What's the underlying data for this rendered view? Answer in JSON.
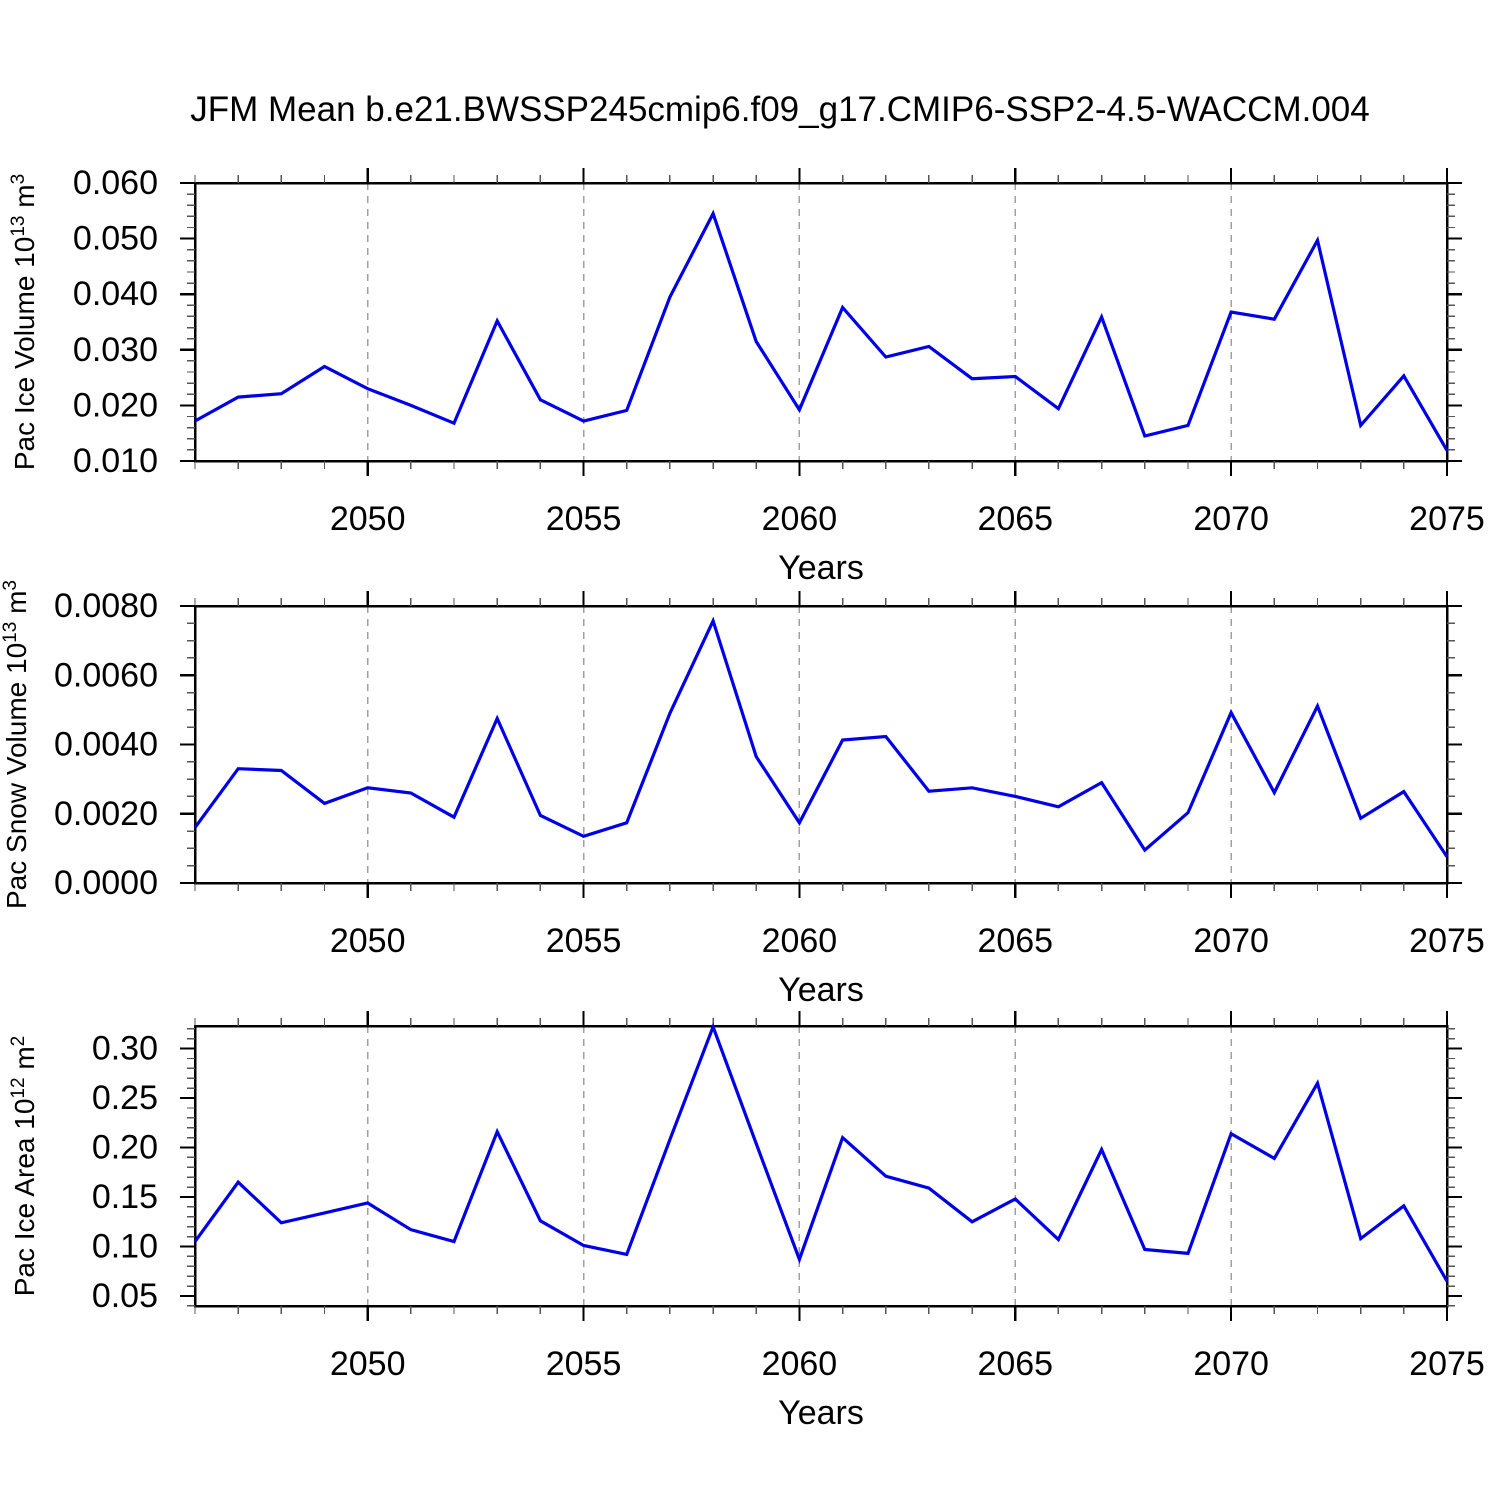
{
  "title": "JFM Mean b.e21.BWSSP245cmip6.f09_g17.CMIP6-SSP2-4.5-WACCM.004",
  "accent_line_color": "#0000e6",
  "gridline_color": "#a0a0a0",
  "chart_data": [
    {
      "id": "pac-ice-volume",
      "type": "line",
      "ylabel_text": "Pac Ice Volume 10^13 m^3",
      "ylabel_parts": [
        {
          "t": "Pac Ice Volume 10"
        },
        {
          "t": "13",
          "sup": true
        },
        {
          "t": " m"
        },
        {
          "t": "3",
          "sup": true
        }
      ],
      "xlabel": "Years",
      "line_color": "#0000e6",
      "x_range": [
        2046,
        2075
      ],
      "x_major_ticks": [
        2050,
        2055,
        2060,
        2065,
        2070,
        2075
      ],
      "x_tick_labels": [
        "2050",
        "2055",
        "2060",
        "2065",
        "2070",
        "2075"
      ],
      "x_gridlines": [
        2050,
        2055,
        2060,
        2065,
        2070
      ],
      "ylim": [
        0.01,
        0.06
      ],
      "y_major_step": 0.01,
      "y_minor_step": 0.002,
      "y_tick_decimals": 3,
      "y_tick_labels": [
        "0.010",
        "0.020",
        "0.030",
        "0.040",
        "0.050",
        "0.060"
      ],
      "grid": "vertical-dashed-only",
      "legend": "none",
      "x": [
        2046,
        2047,
        2048,
        2049,
        2050,
        2051,
        2052,
        2053,
        2054,
        2055,
        2056,
        2057,
        2058,
        2059,
        2060,
        2061,
        2062,
        2063,
        2064,
        2065,
        2066,
        2067,
        2068,
        2069,
        2070,
        2071,
        2072,
        2073,
        2074,
        2075
      ],
      "values": [
        0.0172,
        0.0215,
        0.0221,
        0.027,
        0.023,
        0.02,
        0.0168,
        0.0352,
        0.021,
        0.0172,
        0.0191,
        0.0395,
        0.0545,
        0.0315,
        0.0192,
        0.0376,
        0.0287,
        0.0306,
        0.0248,
        0.0252,
        0.0194,
        0.0359,
        0.0145,
        0.0164,
        0.0368,
        0.0355,
        0.0497,
        0.0164,
        0.0253,
        0.0119
      ]
    },
    {
      "id": "pac-snow-volume",
      "type": "line",
      "ylabel_text": "Pac Snow Volume 10^13 m^3",
      "ylabel_parts": [
        {
          "t": "Pac Snow Volume 10"
        },
        {
          "t": "13",
          "sup": true
        },
        {
          "t": " m"
        },
        {
          "t": "3",
          "sup": true
        }
      ],
      "xlabel": "Years",
      "line_color": "#0000e6",
      "x_range": [
        2046,
        2075
      ],
      "x_major_ticks": [
        2050,
        2055,
        2060,
        2065,
        2070,
        2075
      ],
      "x_tick_labels": [
        "2050",
        "2055",
        "2060",
        "2065",
        "2070",
        "2075"
      ],
      "x_gridlines": [
        2050,
        2055,
        2060,
        2065,
        2070
      ],
      "ylim": [
        0.0,
        0.008
      ],
      "y_major_step": 0.002,
      "y_minor_step": 0.0005,
      "y_tick_decimals": 4,
      "y_tick_labels": [
        "0.0000",
        "0.0020",
        "0.0040",
        "0.0060",
        "0.0080"
      ],
      "grid": "vertical-dashed-only",
      "legend": "none",
      "x": [
        2046,
        2047,
        2048,
        2049,
        2050,
        2051,
        2052,
        2053,
        2054,
        2055,
        2056,
        2057,
        2058,
        2059,
        2060,
        2061,
        2062,
        2063,
        2064,
        2065,
        2066,
        2067,
        2068,
        2069,
        2070,
        2071,
        2072,
        2073,
        2074,
        2075
      ],
      "values": [
        0.0016,
        0.0033,
        0.00325,
        0.0023,
        0.00275,
        0.0026,
        0.0019,
        0.00475,
        0.00195,
        0.00135,
        0.00174,
        0.0049,
        0.00757,
        0.00365,
        0.00174,
        0.00413,
        0.00423,
        0.00265,
        0.00275,
        0.0025,
        0.0022,
        0.0029,
        0.00095,
        0.00203,
        0.00492,
        0.00261,
        0.00511,
        0.00187,
        0.00264,
        0.00076
      ]
    },
    {
      "id": "pac-ice-area",
      "type": "line",
      "ylabel_text": "Pac Ice Area 10^12 m^2",
      "ylabel_parts": [
        {
          "t": "Pac Ice Area 10"
        },
        {
          "t": "12",
          "sup": true
        },
        {
          "t": " m"
        },
        {
          "t": "2",
          "sup": true
        }
      ],
      "xlabel": "Years",
      "line_color": "#0000e6",
      "x_range": [
        2046,
        2075
      ],
      "x_major_ticks": [
        2050,
        2055,
        2060,
        2065,
        2070,
        2075
      ],
      "x_tick_labels": [
        "2050",
        "2055",
        "2060",
        "2065",
        "2070",
        "2075"
      ],
      "x_gridlines": [
        2050,
        2055,
        2060,
        2065,
        2070
      ],
      "ylim": [
        0.0399,
        0.3228
      ],
      "y_major_step": 0.05,
      "y_minor_step": 0.01,
      "y_tick_decimals": 2,
      "y_tick_labels": [
        "0.05",
        "0.10",
        "0.15",
        "0.20",
        "0.25",
        "0.30"
      ],
      "grid": "vertical-dashed-only",
      "legend": "none",
      "x": [
        2046,
        2047,
        2048,
        2049,
        2050,
        2051,
        2052,
        2053,
        2054,
        2055,
        2056,
        2057,
        2058,
        2059,
        2060,
        2061,
        2062,
        2063,
        2064,
        2065,
        2066,
        2067,
        2068,
        2069,
        2070,
        2071,
        2072,
        2073,
        2074,
        2075
      ],
      "values": [
        0.105,
        0.165,
        0.124,
        0.134,
        0.144,
        0.117,
        0.105,
        0.216,
        0.126,
        0.101,
        0.092,
        0.208,
        0.322,
        0.204,
        0.087,
        0.21,
        0.171,
        0.159,
        0.125,
        0.148,
        0.107,
        0.198,
        0.097,
        0.093,
        0.214,
        0.189,
        0.265,
        0.108,
        0.141,
        0.065
      ]
    }
  ]
}
